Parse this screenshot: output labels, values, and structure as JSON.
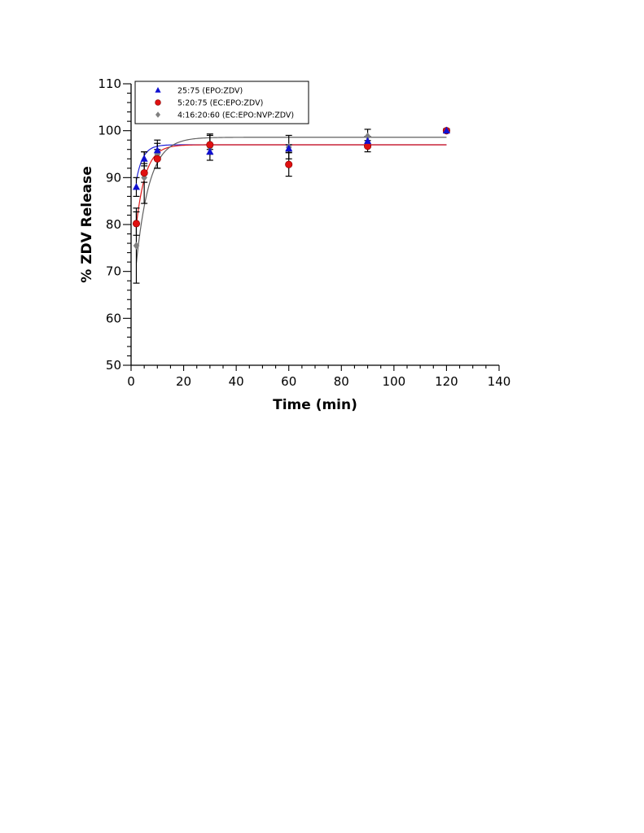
{
  "chart_data": {
    "type": "scatter",
    "title": "",
    "xlabel": "Time (min)",
    "ylabel": "% ZDV Release",
    "xlim": [
      0,
      140
    ],
    "ylim": [
      50,
      110
    ],
    "x_ticks": [
      0,
      20,
      40,
      60,
      80,
      100,
      120,
      140
    ],
    "y_ticks": [
      50,
      60,
      70,
      80,
      90,
      100,
      110
    ],
    "grid": false,
    "legend_position": "top-left",
    "series": [
      {
        "name": "25:75 (EPO:ZDV)",
        "marker": "triangle",
        "color": "#1010d0",
        "fit_color": "#2020d8",
        "x": [
          2,
          5,
          10,
          30,
          60,
          90,
          120
        ],
        "y": [
          88.0,
          94.0,
          95.8,
          95.5,
          96.2,
          97.8,
          100.0
        ],
        "error": [
          2.0,
          1.5,
          1.5,
          0.5,
          0.8,
          1.0,
          0.4
        ],
        "fit": {
          "a": 97.0,
          "b": 17.0,
          "k": 0.4
        }
      },
      {
        "name": "5:20:75 (EC:EPO:ZDV)",
        "marker": "circle",
        "color": "#e01010",
        "fit_color": "#e01818",
        "x": [
          2,
          5,
          10,
          30,
          60,
          90,
          120
        ],
        "y": [
          80.2,
          91.0,
          94.0,
          97.0,
          92.8,
          96.7,
          100.0
        ],
        "error": [
          2.5,
          2.0,
          2.0,
          2.0,
          2.5,
          1.2,
          0.4
        ],
        "fit": {
          "a": 97.0,
          "b": 30.0,
          "k": 0.28
        }
      },
      {
        "name": "4:16:20:60 (EC:EPO:NVP:ZDV)",
        "marker": "diamond",
        "color": "#808080",
        "fit_color": "#606060",
        "x": [
          2,
          5,
          10,
          30,
          60,
          90,
          120
        ],
        "y": [
          75.5,
          90.0,
          95.0,
          96.5,
          96.5,
          98.8,
          100.0
        ],
        "error": [
          8.0,
          5.5,
          3.0,
          2.8,
          2.5,
          1.5,
          0.4
        ],
        "fit": {
          "a": 98.6,
          "b": 40.0,
          "k": 0.2
        }
      }
    ]
  }
}
